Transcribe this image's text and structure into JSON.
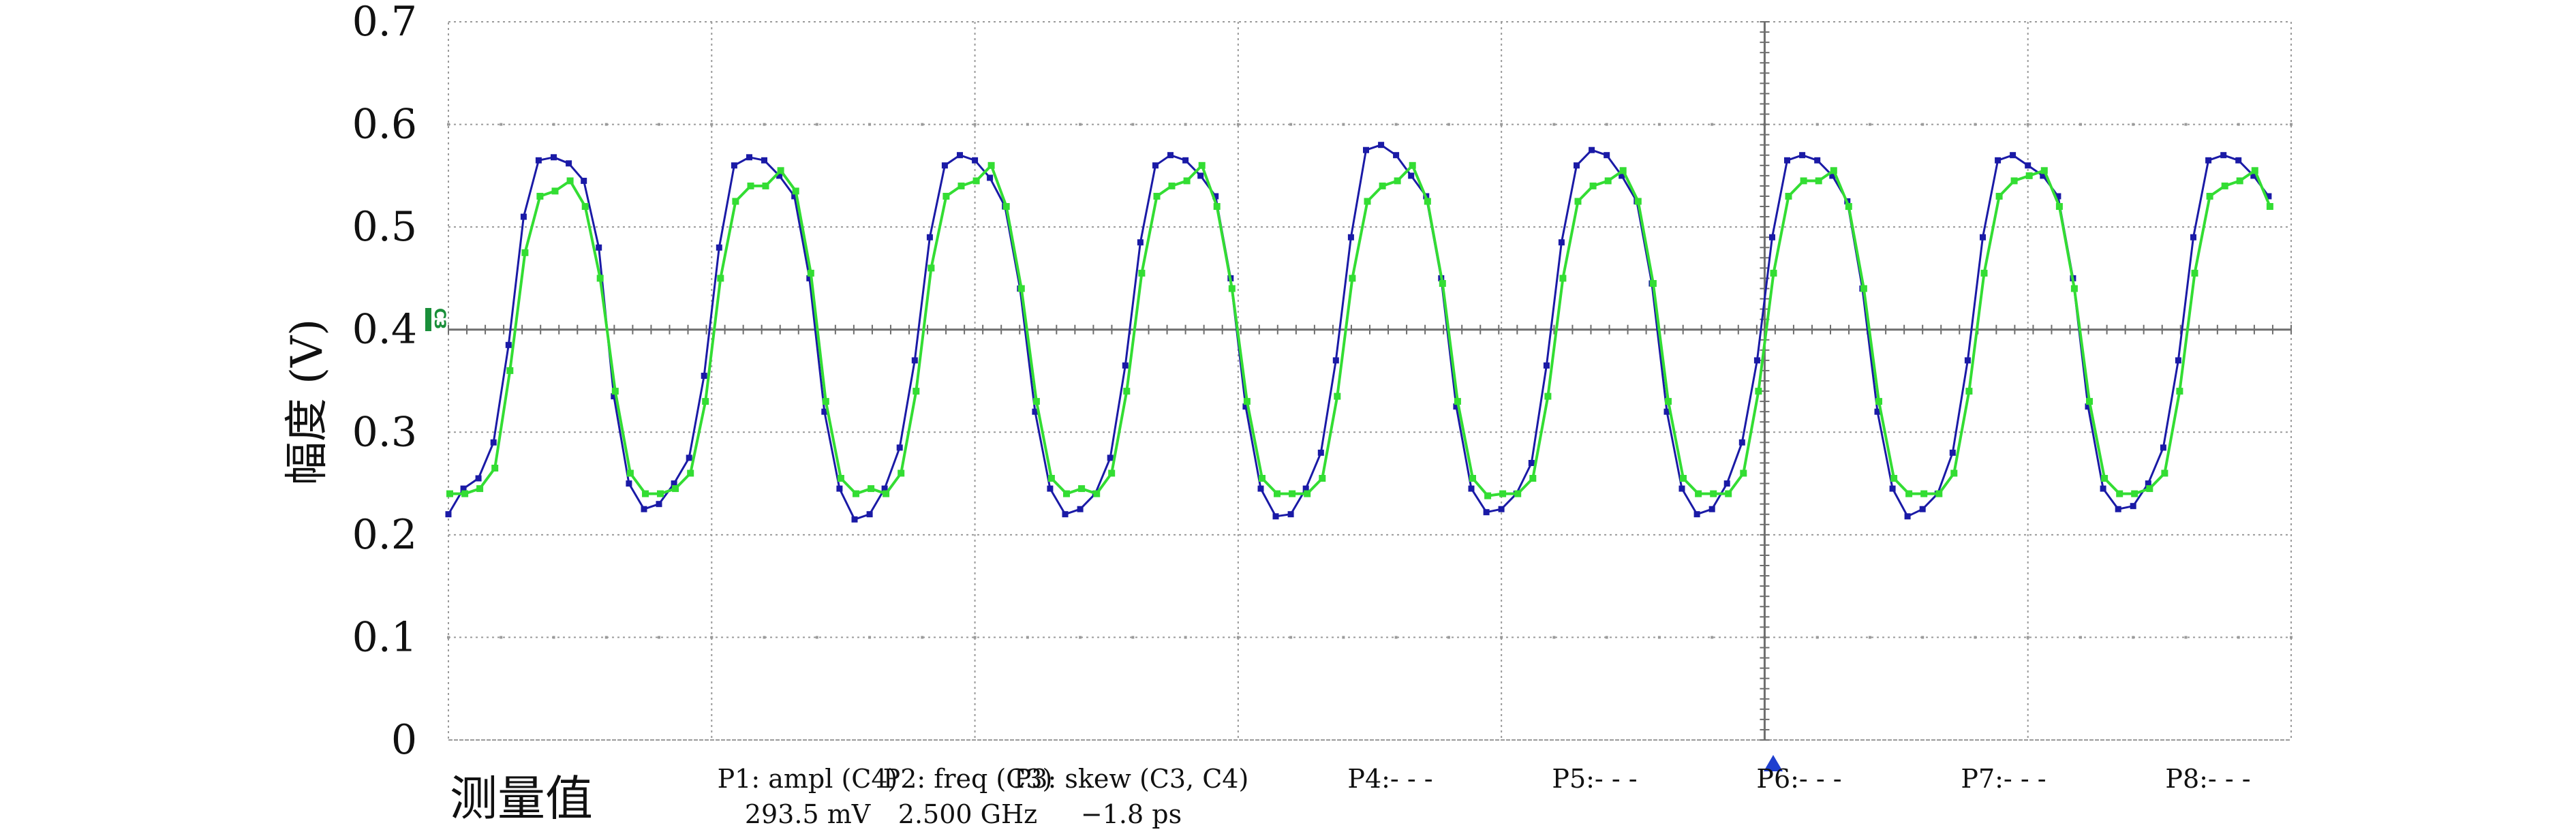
{
  "chart_data": {
    "type": "line",
    "title": "",
    "xlabel": "",
    "ylabel": "幅度 (V)",
    "ylim": [
      0,
      0.7
    ],
    "yticks": [
      "0",
      "0.1",
      "0.2",
      "0.3",
      "0.4",
      "0.5",
      "0.6",
      "0.7"
    ],
    "grid": true,
    "channel_marker": "C3",
    "colors": {
      "series1": "#1a1aa6",
      "series2": "#33dd33",
      "grid": "#9a9a9a",
      "axis": "#6e6e6e",
      "trigger": "#1f3fcf"
    },
    "series": [
      {
        "points_per_period": 14,
        "values": [
          0.22,
          0.245,
          0.255,
          0.29,
          0.385,
          0.51,
          0.565,
          0.568,
          0.562,
          0.545,
          0.48,
          0.335,
          0.25,
          0.225,
          0.23,
          0.25,
          0.275,
          0.355,
          0.48,
          0.56,
          0.568,
          0.565,
          0.55,
          0.53,
          0.45,
          0.32,
          0.245,
          0.215,
          0.22,
          0.245,
          0.285,
          0.37,
          0.49,
          0.56,
          0.57,
          0.565,
          0.548,
          0.52,
          0.44,
          0.32,
          0.245,
          0.22,
          0.225,
          0.24,
          0.275,
          0.365,
          0.485,
          0.56,
          0.57,
          0.565,
          0.55,
          0.53,
          0.45,
          0.325,
          0.245,
          0.218,
          0.22,
          0.245,
          0.28,
          0.37,
          0.49,
          0.575,
          0.58,
          0.57,
          0.55,
          0.53,
          0.45,
          0.325,
          0.245,
          0.222,
          0.225,
          0.24,
          0.27,
          0.365,
          0.485,
          0.56,
          0.575,
          0.57,
          0.55,
          0.525,
          0.445,
          0.32,
          0.245,
          0.22,
          0.225,
          0.25,
          0.29,
          0.37,
          0.49,
          0.565,
          0.57,
          0.565,
          0.55,
          0.525,
          0.44,
          0.32,
          0.245,
          0.218,
          0.225,
          0.24,
          0.28,
          0.37,
          0.49,
          0.565,
          0.57,
          0.56,
          0.55,
          0.53,
          0.45,
          0.325,
          0.245,
          0.225,
          0.228,
          0.25,
          0.285,
          0.37,
          0.49,
          0.565,
          0.57,
          0.565,
          0.55,
          0.53
        ]
      },
      {
        "points_per_period": 14,
        "values": [
          0.24,
          0.24,
          0.245,
          0.265,
          0.36,
          0.475,
          0.53,
          0.535,
          0.545,
          0.52,
          0.45,
          0.34,
          0.26,
          0.24,
          0.24,
          0.245,
          0.26,
          0.33,
          0.45,
          0.525,
          0.54,
          0.54,
          0.555,
          0.535,
          0.455,
          0.33,
          0.255,
          0.24,
          0.245,
          0.24,
          0.26,
          0.34,
          0.46,
          0.53,
          0.54,
          0.545,
          0.56,
          0.52,
          0.44,
          0.33,
          0.255,
          0.24,
          0.245,
          0.24,
          0.26,
          0.34,
          0.455,
          0.53,
          0.54,
          0.545,
          0.56,
          0.52,
          0.44,
          0.33,
          0.255,
          0.24,
          0.24,
          0.24,
          0.255,
          0.335,
          0.45,
          0.525,
          0.54,
          0.545,
          0.56,
          0.525,
          0.445,
          0.33,
          0.255,
          0.238,
          0.24,
          0.24,
          0.255,
          0.335,
          0.45,
          0.525,
          0.54,
          0.545,
          0.555,
          0.525,
          0.445,
          0.33,
          0.255,
          0.24,
          0.24,
          0.24,
          0.26,
          0.34,
          0.455,
          0.53,
          0.545,
          0.545,
          0.555,
          0.52,
          0.44,
          0.33,
          0.255,
          0.24,
          0.24,
          0.24,
          0.26,
          0.34,
          0.455,
          0.53,
          0.545,
          0.55,
          0.555,
          0.52,
          0.44,
          0.33,
          0.255,
          0.24,
          0.24,
          0.245,
          0.26,
          0.34,
          0.455,
          0.53,
          0.54,
          0.545,
          0.555,
          0.52
        ]
      }
    ]
  },
  "measurements": {
    "title": "测量值",
    "items": [
      {
        "name": "P1: ampl (C4)",
        "value": "293.5 mV"
      },
      {
        "name": "P2: freq (C3)",
        "value": "2.500 GHz"
      },
      {
        "name": "P3: skew (C3, C4)",
        "value": "−1.8 ps"
      },
      {
        "name": "P4:- - -",
        "value": ""
      },
      {
        "name": "P5:- - -",
        "value": ""
      },
      {
        "name": "P6:- - -",
        "value": ""
      },
      {
        "name": "P7:- - -",
        "value": ""
      },
      {
        "name": "P8:- - -",
        "value": ""
      }
    ]
  }
}
